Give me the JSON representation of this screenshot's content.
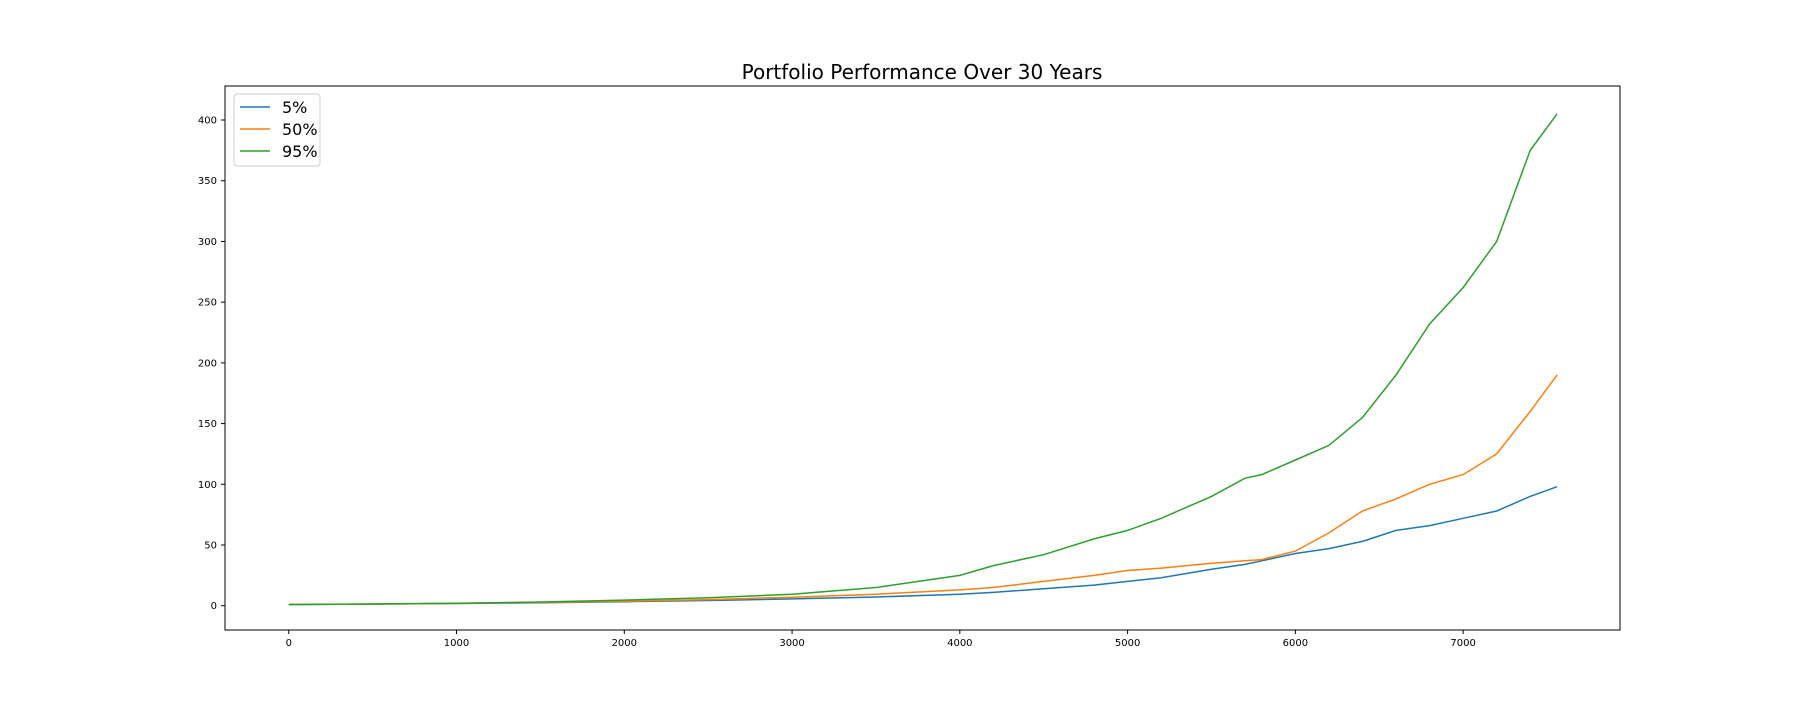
{
  "chart_data": {
    "type": "line",
    "title": "Portfolio Performance Over 30 Years",
    "xlabel": "",
    "ylabel": "",
    "xlim": [
      -380,
      7935
    ],
    "ylim": [
      -20,
      428
    ],
    "x_ticks": [
      0,
      1000,
      2000,
      3000,
      4000,
      5000,
      6000,
      7000
    ],
    "y_ticks": [
      0,
      50,
      100,
      150,
      200,
      250,
      300,
      350,
      400
    ],
    "grid": false,
    "legend": "top-left",
    "x": [
      0,
      500,
      1000,
      1500,
      2000,
      2500,
      3000,
      3500,
      4000,
      4200,
      4500,
      4800,
      5000,
      5200,
      5500,
      5700,
      5800,
      6000,
      6200,
      6400,
      6600,
      6800,
      7000,
      7200,
      7400,
      7560
    ],
    "series": [
      {
        "name": "5%",
        "color": "#1f77b4",
        "values": [
          1,
          1.3,
          1.8,
          2.4,
          3.3,
          4.3,
          5.6,
          7.2,
          9.5,
          11,
          14,
          17,
          20,
          23,
          30,
          34,
          37,
          43,
          47,
          53,
          62,
          66,
          72,
          78,
          90,
          98
        ]
      },
      {
        "name": "50%",
        "color": "#ff7f0e",
        "values": [
          1,
          1.3,
          1.9,
          2.7,
          3.7,
          5,
          7,
          9.5,
          13,
          15,
          20,
          25,
          29,
          31,
          35,
          37,
          38,
          45,
          60,
          78,
          88,
          100,
          108,
          125,
          160,
          190
        ]
      },
      {
        "name": "95%",
        "color": "#2ca02c",
        "values": [
          1,
          1.4,
          2.1,
          3.1,
          4.6,
          6.5,
          9.5,
          15,
          25,
          33,
          42,
          55,
          62,
          72,
          90,
          105,
          108,
          120,
          132,
          155,
          190,
          232,
          262,
          300,
          375,
          405
        ]
      }
    ]
  }
}
